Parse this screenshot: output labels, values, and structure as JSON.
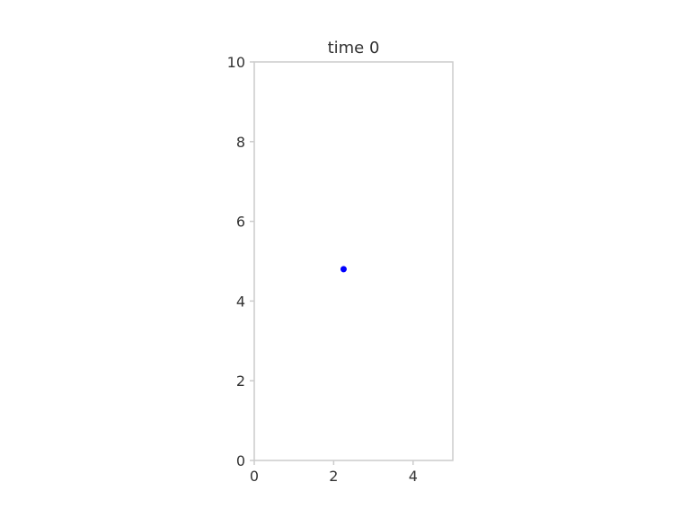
{
  "chart_data": {
    "type": "scatter",
    "title": "time 0",
    "xlabel": "",
    "ylabel": "",
    "xlim": [
      0,
      5
    ],
    "ylim": [
      0,
      10
    ],
    "x_ticks": [
      0,
      2,
      4
    ],
    "y_ticks": [
      0,
      2,
      4,
      6,
      8,
      10
    ],
    "grid": false,
    "series": [
      {
        "x": [
          2.25
        ],
        "y": [
          4.8
        ],
        "color": "#0000ff"
      }
    ]
  }
}
